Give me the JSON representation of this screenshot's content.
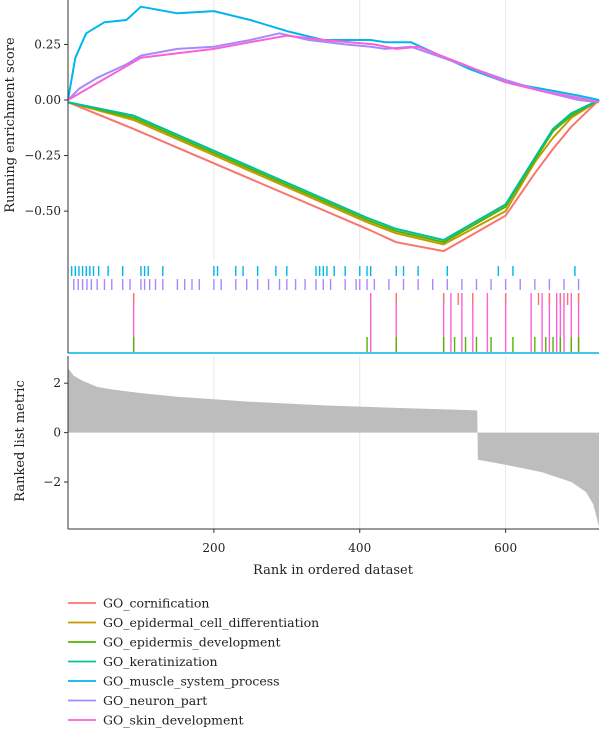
{
  "chart_data": {
    "type": "line",
    "title": "",
    "xlabel": "Rank in ordered dataset",
    "xlim": [
      0,
      728
    ],
    "x_ticks": [
      200,
      400,
      600
    ],
    "grid": true,
    "legend_position": "bottom-left",
    "panels": {
      "enrichment": {
        "ylabel": "Running enrichment score",
        "ylim": [
          -0.72,
          0.45
        ],
        "y_ticks": [
          0.25,
          0.0,
          -0.25,
          -0.5
        ],
        "y_tick_labels": [
          "0.25",
          "0.00",
          "−0.25",
          "−0.50"
        ]
      },
      "ranked_metric": {
        "ylabel": "Ranked list metric",
        "ylim": [
          -3.9,
          3.1
        ],
        "y_ticks": [
          2,
          0,
          -2
        ],
        "y_tick_labels": [
          "2",
          "0",
          "−2"
        ],
        "points": [
          [
            0,
            2.6
          ],
          [
            8,
            2.3
          ],
          [
            20,
            2.1
          ],
          [
            40,
            1.85
          ],
          [
            60,
            1.75
          ],
          [
            100,
            1.6
          ],
          [
            150,
            1.45
          ],
          [
            250,
            1.25
          ],
          [
            350,
            1.1
          ],
          [
            450,
            1.0
          ],
          [
            561,
            0.9
          ],
          [
            562,
            -1.1
          ],
          [
            600,
            -1.3
          ],
          [
            650,
            -1.6
          ],
          [
            690,
            -2.0
          ],
          [
            710,
            -2.4
          ],
          [
            720,
            -2.9
          ],
          [
            728,
            -3.8
          ]
        ],
        "fill_color": "#bdbdbd"
      }
    },
    "series": [
      {
        "name": "GO_cornification",
        "color": "#f8766d",
        "points": [
          [
            0,
            -0.01
          ],
          [
            90,
            -0.13
          ],
          [
            410,
            -0.58
          ],
          [
            450,
            -0.64
          ],
          [
            515,
            -0.68
          ],
          [
            600,
            -0.52
          ],
          [
            640,
            -0.33
          ],
          [
            665,
            -0.22
          ],
          [
            690,
            -0.12
          ],
          [
            728,
            0.0
          ]
        ]
      },
      {
        "name": "GO_epidermal_cell_differentiation",
        "color": "#c49a00",
        "points": [
          [
            0,
            -0.01
          ],
          [
            90,
            -0.09
          ],
          [
            410,
            -0.55
          ],
          [
            450,
            -0.6
          ],
          [
            515,
            -0.65
          ],
          [
            600,
            -0.5
          ],
          [
            640,
            -0.28
          ],
          [
            665,
            -0.17
          ],
          [
            690,
            -0.08
          ],
          [
            728,
            0.0
          ]
        ]
      },
      {
        "name": "GO_epidermis_development",
        "color": "#53b400",
        "points": [
          [
            0,
            -0.01
          ],
          [
            90,
            -0.08
          ],
          [
            410,
            -0.54
          ],
          [
            450,
            -0.59
          ],
          [
            515,
            -0.64
          ],
          [
            600,
            -0.48
          ],
          [
            640,
            -0.27
          ],
          [
            665,
            -0.14
          ],
          [
            690,
            -0.07
          ],
          [
            728,
            0.0
          ]
        ]
      },
      {
        "name": "GO_keratinization",
        "color": "#00c094",
        "points": [
          [
            0,
            -0.01
          ],
          [
            90,
            -0.07
          ],
          [
            410,
            -0.53
          ],
          [
            450,
            -0.58
          ],
          [
            515,
            -0.63
          ],
          [
            600,
            -0.47
          ],
          [
            640,
            -0.26
          ],
          [
            665,
            -0.13
          ],
          [
            690,
            -0.06
          ],
          [
            728,
            0.0
          ]
        ]
      },
      {
        "name": "GO_muscle_system_process",
        "color": "#00b6eb",
        "points": [
          [
            0,
            0.0
          ],
          [
            10,
            0.19
          ],
          [
            25,
            0.3
          ],
          [
            50,
            0.35
          ],
          [
            80,
            0.36
          ],
          [
            100,
            0.42
          ],
          [
            150,
            0.39
          ],
          [
            200,
            0.4
          ],
          [
            250,
            0.36
          ],
          [
            300,
            0.31
          ],
          [
            350,
            0.27
          ],
          [
            415,
            0.27
          ],
          [
            435,
            0.26
          ],
          [
            470,
            0.26
          ],
          [
            550,
            0.14
          ],
          [
            600,
            0.08
          ],
          [
            650,
            0.05
          ],
          [
            700,
            0.02
          ],
          [
            728,
            0.0
          ]
        ]
      },
      {
        "name": "GO_neuron_part",
        "color": "#a58aff",
        "points": [
          [
            0,
            0.0
          ],
          [
            15,
            0.05
          ],
          [
            40,
            0.1
          ],
          [
            80,
            0.16
          ],
          [
            100,
            0.2
          ],
          [
            150,
            0.23
          ],
          [
            200,
            0.24
          ],
          [
            250,
            0.27
          ],
          [
            290,
            0.3
          ],
          [
            330,
            0.27
          ],
          [
            380,
            0.25
          ],
          [
            415,
            0.24
          ],
          [
            435,
            0.23
          ],
          [
            470,
            0.24
          ],
          [
            540,
            0.16
          ],
          [
            600,
            0.09
          ],
          [
            650,
            0.04
          ],
          [
            700,
            0.0
          ],
          [
            728,
            -0.01
          ]
        ]
      },
      {
        "name": "GO_skin_development",
        "color": "#fb61d7",
        "points": [
          [
            0,
            0.0
          ],
          [
            100,
            0.19
          ],
          [
            150,
            0.21
          ],
          [
            200,
            0.23
          ],
          [
            250,
            0.26
          ],
          [
            300,
            0.29
          ],
          [
            350,
            0.27
          ],
          [
            420,
            0.25
          ],
          [
            450,
            0.23
          ],
          [
            480,
            0.24
          ],
          [
            550,
            0.15
          ],
          [
            600,
            0.08
          ],
          [
            650,
            0.04
          ],
          [
            700,
            0.01
          ],
          [
            728,
            -0.01
          ]
        ]
      }
    ],
    "hit_ranks": {
      "GO_muscle_system_process": [
        5,
        10,
        15,
        20,
        25,
        30,
        35,
        42,
        55,
        75,
        100,
        105,
        110,
        130,
        200,
        205,
        230,
        240,
        260,
        285,
        300,
        340,
        345,
        350,
        355,
        365,
        380,
        400,
        410,
        415,
        450,
        460,
        480,
        520,
        590,
        610,
        695
      ],
      "GO_neuron_part": [
        8,
        14,
        20,
        26,
        32,
        40,
        50,
        60,
        75,
        85,
        100,
        105,
        112,
        120,
        130,
        150,
        160,
        170,
        180,
        200,
        210,
        230,
        245,
        260,
        275,
        290,
        300,
        312,
        325,
        340,
        350,
        360,
        380,
        395,
        400,
        410,
        420,
        440,
        460,
        480,
        500,
        520,
        540,
        560,
        580,
        600,
        620,
        640,
        660,
        680,
        700
      ],
      "GO_skin_development": [
        90,
        415,
        450,
        515,
        525,
        540,
        555,
        575,
        600,
        635,
        650,
        660,
        670,
        675,
        680,
        690,
        700
      ],
      "GO_epidermis_development": [
        90,
        410,
        450,
        515,
        530,
        545,
        560,
        580,
        610,
        640,
        655,
        665,
        675,
        690,
        700
      ],
      "GO_cornification": [
        90,
        450,
        515,
        535,
        555,
        600,
        645,
        660,
        675,
        685,
        700
      ]
    }
  },
  "legend": [
    {
      "label": "GO_cornification",
      "color": "#f8766d"
    },
    {
      "label": "GO_epidermal_cell_differentiation",
      "color": "#c49a00"
    },
    {
      "label": "GO_epidermis_development",
      "color": "#53b400"
    },
    {
      "label": "GO_keratinization",
      "color": "#00c094"
    },
    {
      "label": "GO_muscle_system_process",
      "color": "#00b6eb"
    },
    {
      "label": "GO_neuron_part",
      "color": "#a58aff"
    },
    {
      "label": "GO_skin_development",
      "color": "#fb61d7"
    }
  ]
}
